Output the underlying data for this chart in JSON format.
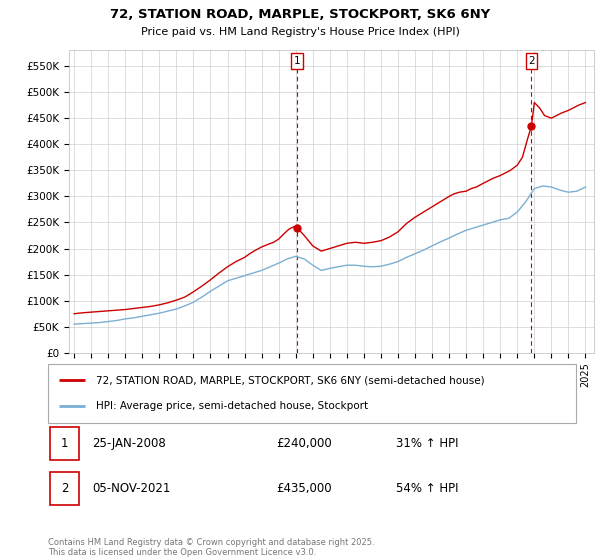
{
  "title": "72, STATION ROAD, MARPLE, STOCKPORT, SK6 6NY",
  "subtitle": "Price paid vs. HM Land Registry's House Price Index (HPI)",
  "ylim": [
    0,
    580000
  ],
  "yticks": [
    0,
    50000,
    100000,
    150000,
    200000,
    250000,
    300000,
    350000,
    400000,
    450000,
    500000,
    550000
  ],
  "ytick_labels": [
    "£0",
    "£50K",
    "£100K",
    "£150K",
    "£200K",
    "£250K",
    "£300K",
    "£350K",
    "£400K",
    "£450K",
    "£500K",
    "£550K"
  ],
  "sale1_date": "25-JAN-2008",
  "sale1_price": 240000,
  "sale1_price_str": "£240,000",
  "sale1_hpi": "31% ↑ HPI",
  "sale1_x": 2008.08,
  "sale2_date": "05-NOV-2021",
  "sale2_price": 435000,
  "sale2_price_str": "£435,000",
  "sale2_hpi": "54% ↑ HPI",
  "sale2_x": 2021.83,
  "line_color_property": "#cc0000",
  "line_color_hpi": "#7bafd4",
  "legend_property": "72, STATION ROAD, MARPLE, STOCKPORT, SK6 6NY (semi-detached house)",
  "legend_hpi": "HPI: Average price, semi-detached house, Stockport",
  "footer": "Contains HM Land Registry data © Crown copyright and database right 2025.\nThis data is licensed under the Open Government Licence v3.0.",
  "background_color": "#ffffff",
  "grid_color": "#d0d0d0",
  "hpi_x": [
    1995.0,
    1995.5,
    1996.0,
    1996.5,
    1997.0,
    1997.5,
    1998.0,
    1998.5,
    1999.0,
    1999.5,
    2000.0,
    2000.5,
    2001.0,
    2001.5,
    2002.0,
    2002.5,
    2003.0,
    2003.5,
    2004.0,
    2004.5,
    2005.0,
    2005.5,
    2006.0,
    2006.5,
    2007.0,
    2007.5,
    2008.0,
    2008.5,
    2009.0,
    2009.5,
    2010.0,
    2010.5,
    2011.0,
    2011.5,
    2012.0,
    2012.5,
    2013.0,
    2013.5,
    2014.0,
    2014.5,
    2015.0,
    2015.5,
    2016.0,
    2016.5,
    2017.0,
    2017.5,
    2018.0,
    2018.5,
    2019.0,
    2019.5,
    2020.0,
    2020.5,
    2021.0,
    2021.5,
    2022.0,
    2022.5,
    2023.0,
    2023.5,
    2024.0,
    2024.5,
    2025.0
  ],
  "hpi_y": [
    55000,
    56000,
    57000,
    58000,
    60000,
    62000,
    65000,
    67000,
    70000,
    73000,
    76000,
    80000,
    84000,
    90000,
    97000,
    107000,
    118000,
    128000,
    138000,
    143000,
    148000,
    153000,
    158000,
    165000,
    172000,
    180000,
    185000,
    180000,
    168000,
    158000,
    162000,
    165000,
    168000,
    168000,
    166000,
    165000,
    166000,
    170000,
    175000,
    183000,
    190000,
    197000,
    205000,
    213000,
    220000,
    228000,
    235000,
    240000,
    245000,
    250000,
    255000,
    258000,
    270000,
    290000,
    315000,
    320000,
    318000,
    312000,
    308000,
    310000,
    318000
  ],
  "prop_x": [
    1995.0,
    1995.3,
    1995.6,
    1996.0,
    1996.4,
    1996.8,
    1997.2,
    1997.6,
    1998.0,
    1998.5,
    1999.0,
    1999.5,
    2000.0,
    2000.5,
    2001.0,
    2001.5,
    2002.0,
    2002.5,
    2003.0,
    2003.5,
    2004.0,
    2004.5,
    2005.0,
    2005.3,
    2005.6,
    2006.0,
    2006.3,
    2006.7,
    2007.0,
    2007.3,
    2007.6,
    2007.9,
    2008.08,
    2008.5,
    2009.0,
    2009.5,
    2010.0,
    2010.5,
    2011.0,
    2011.5,
    2012.0,
    2012.5,
    2013.0,
    2013.5,
    2014.0,
    2014.5,
    2015.0,
    2015.5,
    2016.0,
    2016.5,
    2017.0,
    2017.3,
    2017.6,
    2018.0,
    2018.3,
    2018.6,
    2019.0,
    2019.3,
    2019.6,
    2020.0,
    2020.3,
    2020.6,
    2021.0,
    2021.3,
    2021.6,
    2021.83,
    2022.0,
    2022.3,
    2022.6,
    2023.0,
    2023.3,
    2023.6,
    2024.0,
    2024.3,
    2024.6,
    2025.0
  ],
  "prop_y": [
    75000,
    76000,
    77000,
    78000,
    79000,
    80000,
    81000,
    82000,
    83000,
    85000,
    87000,
    89000,
    92000,
    96000,
    101000,
    107000,
    117000,
    128000,
    140000,
    153000,
    165000,
    175000,
    183000,
    190000,
    196000,
    203000,
    207000,
    212000,
    218000,
    228000,
    237000,
    242000,
    240000,
    225000,
    205000,
    195000,
    200000,
    205000,
    210000,
    212000,
    210000,
    212000,
    215000,
    222000,
    232000,
    248000,
    260000,
    270000,
    280000,
    290000,
    300000,
    305000,
    308000,
    310000,
    315000,
    318000,
    325000,
    330000,
    335000,
    340000,
    345000,
    350000,
    360000,
    375000,
    410000,
    435000,
    480000,
    470000,
    455000,
    450000,
    455000,
    460000,
    465000,
    470000,
    475000,
    480000
  ]
}
